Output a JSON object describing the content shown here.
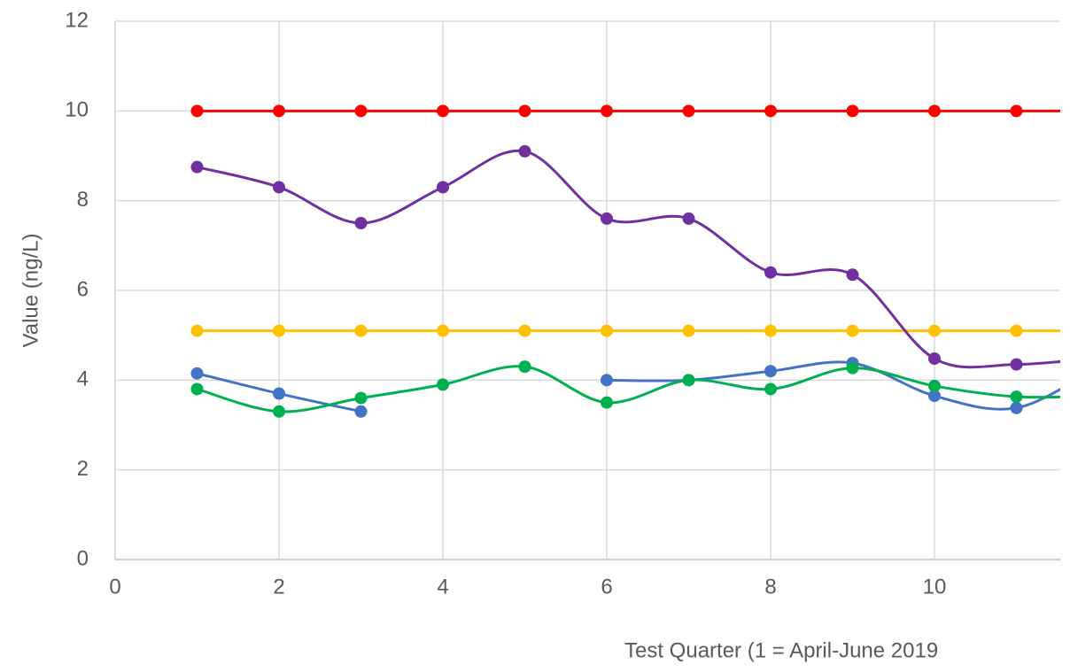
{
  "chart_data": {
    "type": "line",
    "x": [
      1,
      2,
      3,
      4,
      5,
      6,
      7,
      8,
      9,
      10,
      11,
      12
    ],
    "series": [
      {
        "color": "#ff0000",
        "values": [
          10,
          10,
          10,
          10,
          10,
          10,
          10,
          10,
          10,
          10,
          10,
          10
        ]
      },
      {
        "color": "#ffc000",
        "values": [
          5.1,
          5.1,
          5.1,
          5.1,
          5.1,
          5.1,
          5.1,
          5.1,
          5.1,
          5.1,
          5.1,
          5.1
        ]
      },
      {
        "color": "#7030a0",
        "values": [
          8.75,
          8.3,
          7.5,
          8.3,
          9.1,
          7.6,
          7.6,
          6.4,
          6.35,
          4.48,
          4.35,
          4.5
        ]
      },
      {
        "color": "#4472c4",
        "values": [
          4.15,
          3.7,
          3.3,
          null,
          null,
          4.0,
          4.0,
          4.2,
          4.38,
          3.65,
          3.38,
          4.3
        ]
      },
      {
        "color": "#00b050",
        "values": [
          3.8,
          3.3,
          3.6,
          3.9,
          4.3,
          3.5,
          4.0,
          3.8,
          4.27,
          3.87,
          3.63,
          3.65
        ]
      }
    ],
    "xlabel": "Test Quarter  (1 = April-June 2019",
    "ylabel": "Value (ng/L)",
    "xlim": [
      0,
      12
    ],
    "ylim": [
      0,
      12
    ],
    "xticks": [
      0,
      2,
      4,
      6,
      8,
      10
    ],
    "yticks": [
      0,
      2,
      4,
      6,
      8,
      10,
      12
    ],
    "grid": true,
    "smooth": true,
    "markers": true
  }
}
